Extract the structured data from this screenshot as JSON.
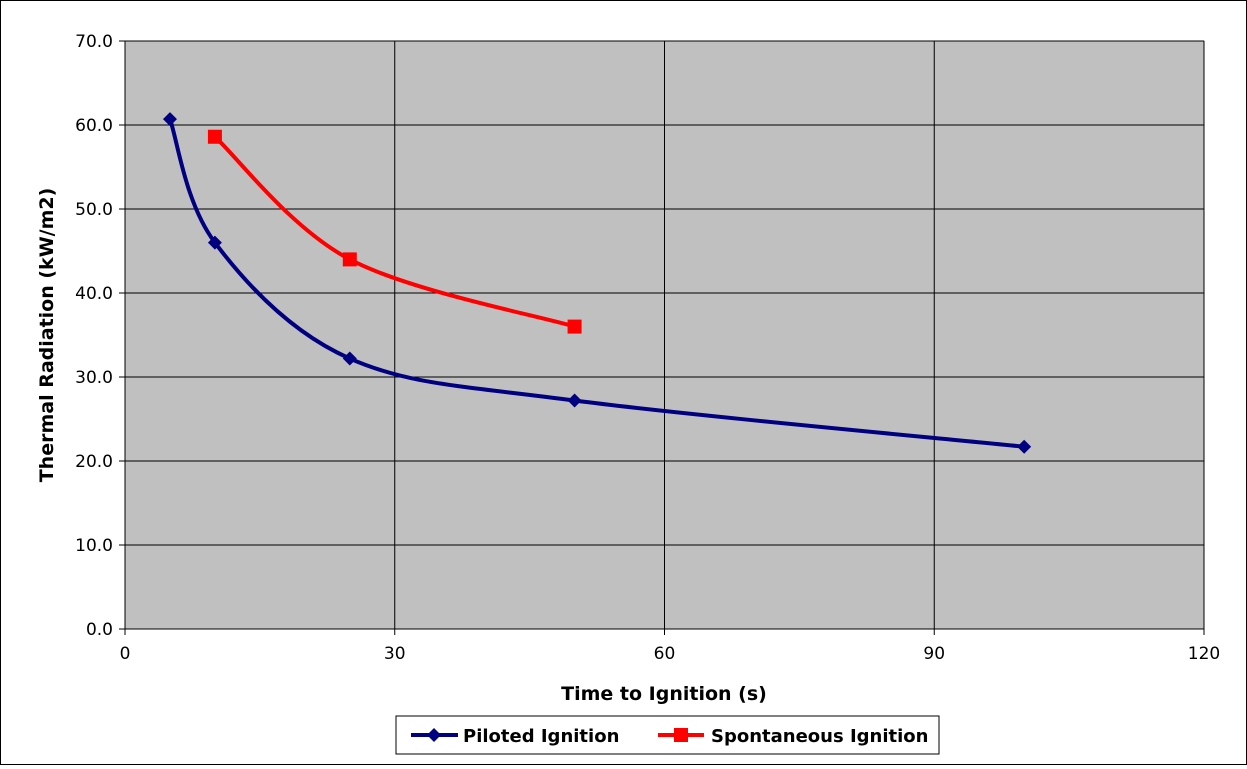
{
  "chart_data": {
    "type": "line",
    "title": "",
    "xlabel": "Time to Ignition (s)",
    "ylabel": "Thermal Radiation (kW/m2)",
    "xlim": [
      0,
      120
    ],
    "ylim": [
      0,
      70
    ],
    "x_ticks": [
      0,
      30,
      60,
      90,
      120
    ],
    "y_ticks": [
      0,
      10,
      20,
      30,
      40,
      50,
      60,
      70
    ],
    "x_tick_labels": [
      "0",
      "30",
      "60",
      "90",
      "120"
    ],
    "y_tick_labels": [
      "0.0",
      "10.0",
      "20.0",
      "30.0",
      "40.0",
      "50.0",
      "60.0",
      "70.0"
    ],
    "grid": true,
    "plot_background": "#c0c0c0",
    "legend_position": "bottom",
    "series": [
      {
        "name": "Piloted Ignition",
        "color": "#000080",
        "marker": "diamond",
        "smooth": true,
        "x": [
          5,
          10,
          25,
          50,
          100
        ],
        "y": [
          60.7,
          46.0,
          32.2,
          27.2,
          21.7
        ]
      },
      {
        "name": "Spontaneous Ignition",
        "color": "#ff0000",
        "marker": "square",
        "smooth": true,
        "x": [
          10,
          25,
          50
        ],
        "y": [
          58.6,
          44.0,
          36.0
        ]
      }
    ]
  }
}
